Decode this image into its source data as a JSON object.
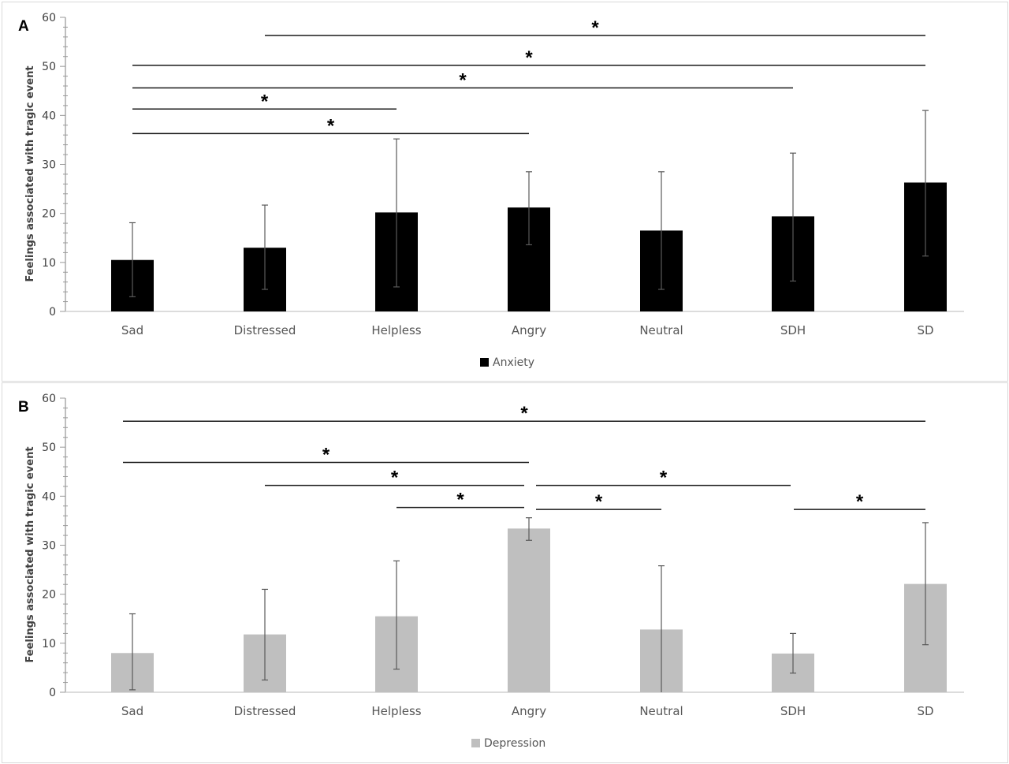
{
  "chart_data": [
    {
      "panel": "A",
      "type": "bar",
      "title": "",
      "xlabel": "",
      "ylabel": "Feelings associated with tragic event",
      "ylim": [
        0,
        60
      ],
      "yticks": [
        0,
        10,
        20,
        30,
        40,
        50,
        60
      ],
      "grid": false,
      "legend_position": "bottom",
      "categories": [
        "Sad",
        "Distressed",
        "Helpless",
        "Angry",
        "Neutral",
        "SDH",
        "SD"
      ],
      "series": [
        {
          "name": "Anxiety",
          "color": "#000000",
          "values": [
            10.5,
            13.0,
            20.2,
            21.2,
            16.5,
            19.4,
            26.3
          ],
          "error_low": [
            3.0,
            4.5,
            5.0,
            13.6,
            4.5,
            6.2,
            11.3
          ],
          "error_high": [
            18.1,
            21.7,
            35.2,
            28.5,
            28.5,
            32.3,
            41.0
          ]
        }
      ],
      "significance": [
        {
          "from": "Distressed",
          "to": "SD",
          "y": 56.3,
          "label": "*"
        },
        {
          "from": "Sad",
          "to": "SD",
          "y": 50.2,
          "label": "*"
        },
        {
          "from": "Sad",
          "to": "SDH",
          "y": 45.6,
          "label": "*"
        },
        {
          "from": "Sad",
          "to": "Helpless",
          "y": 41.3,
          "label": "*"
        },
        {
          "from": "Sad",
          "to": "Angry",
          "y": 36.3,
          "label": "*"
        }
      ]
    },
    {
      "panel": "B",
      "type": "bar",
      "title": "",
      "xlabel": "",
      "ylabel": "Feelings associated with tragic event",
      "ylim": [
        0,
        60
      ],
      "yticks": [
        0,
        10,
        20,
        30,
        40,
        50,
        60
      ],
      "grid": false,
      "legend_position": "bottom",
      "categories": [
        "Sad",
        "Distressed",
        "Helpless",
        "Angry",
        "Neutral",
        "SDH",
        "SD"
      ],
      "series": [
        {
          "name": "Depression",
          "color": "#bfbfbf",
          "values": [
            8.0,
            11.8,
            15.5,
            33.4,
            12.8,
            7.9,
            22.1
          ],
          "error_low": [
            0.5,
            2.5,
            4.7,
            31.0,
            0.0,
            3.9,
            9.7
          ],
          "error_high": [
            16.0,
            21.0,
            26.8,
            35.6,
            25.8,
            12.0,
            34.6
          ]
        }
      ],
      "significance": [
        {
          "from": "Sad",
          "to": "SD",
          "y": 55.3,
          "label": "*"
        },
        {
          "from": "Sad",
          "to": "Angry",
          "y": 46.9,
          "label": "*"
        },
        {
          "from": "Distressed",
          "to": "Angry",
          "y": 42.2,
          "label": "*"
        },
        {
          "from": "Helpless",
          "to": "Angry",
          "y": 37.7,
          "label": "*"
        },
        {
          "from": "Angry",
          "to": "SDH",
          "y": 42.2,
          "label": "*"
        },
        {
          "from": "Angry",
          "to": "Neutral",
          "y": 37.3,
          "label": "*"
        },
        {
          "from": "SDH",
          "to": "SD",
          "y": 37.3,
          "label": "*"
        }
      ]
    }
  ],
  "panels": {
    "A": {
      "letter": "A",
      "legend": "Anxiety"
    },
    "B": {
      "letter": "B",
      "legend": "Depression"
    }
  }
}
